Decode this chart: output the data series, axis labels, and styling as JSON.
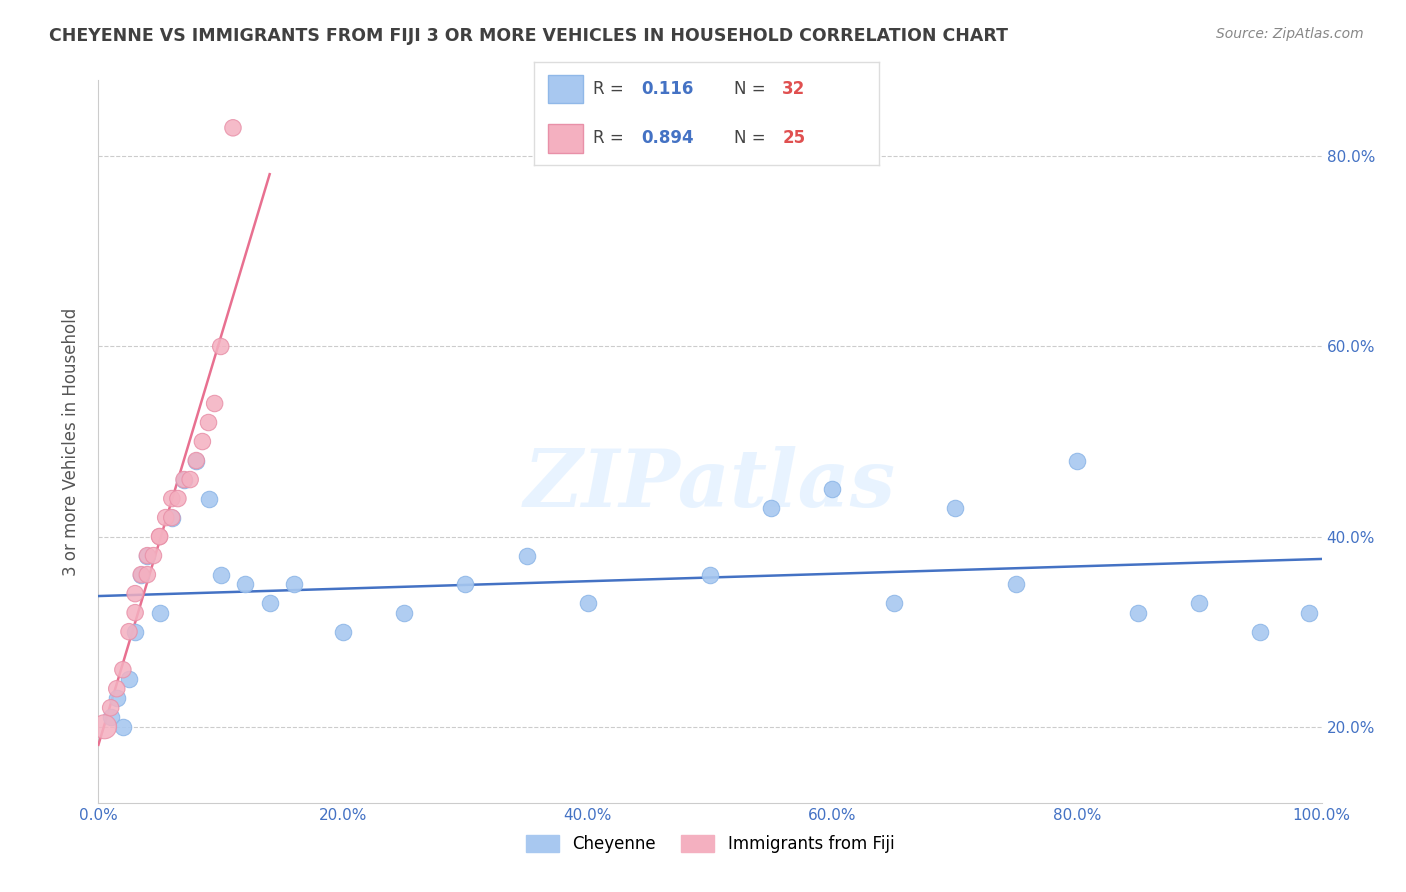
{
  "title": "CHEYENNE VS IMMIGRANTS FROM FIJI 3 OR MORE VEHICLES IN HOUSEHOLD CORRELATION CHART",
  "source": "Source: ZipAtlas.com",
  "ylabel": "3 or more Vehicles in Household",
  "watermark": "ZIPatlas",
  "legend_entry1": {
    "color": "#a8c8f0",
    "R": "0.116",
    "N": "32",
    "label": "Cheyenne"
  },
  "legend_entry2": {
    "color": "#f4b8c8",
    "R": "0.894",
    "N": "25",
    "label": "Immigrants from Fiji"
  },
  "cheyenne_x": [
    1.0,
    1.5,
    2.0,
    2.5,
    3.0,
    3.5,
    4.0,
    5.0,
    6.0,
    7.0,
    8.0,
    9.0,
    10.0,
    12.0,
    14.0,
    16.0,
    20.0,
    25.0,
    30.0,
    35.0,
    40.0,
    50.0,
    55.0,
    60.0,
    65.0,
    70.0,
    75.0,
    80.0,
    85.0,
    90.0,
    95.0,
    99.0
  ],
  "cheyenne_y": [
    21.0,
    23.0,
    20.0,
    25.0,
    30.0,
    36.0,
    38.0,
    32.0,
    42.0,
    46.0,
    48.0,
    44.0,
    36.0,
    35.0,
    33.0,
    35.0,
    30.0,
    32.0,
    35.0,
    38.0,
    33.0,
    36.0,
    43.0,
    45.0,
    33.0,
    43.0,
    35.0,
    48.0,
    32.0,
    33.0,
    30.0,
    32.0
  ],
  "fiji_x": [
    0.5,
    1.0,
    1.5,
    2.0,
    2.5,
    3.0,
    3.0,
    3.5,
    4.0,
    4.0,
    4.5,
    5.0,
    5.0,
    5.5,
    6.0,
    6.0,
    6.5,
    7.0,
    7.5,
    8.0,
    8.5,
    9.0,
    9.5,
    10.0,
    11.0
  ],
  "fiji_y": [
    20.0,
    22.0,
    24.0,
    26.0,
    30.0,
    32.0,
    34.0,
    36.0,
    36.0,
    38.0,
    38.0,
    40.0,
    40.0,
    42.0,
    42.0,
    44.0,
    44.0,
    46.0,
    46.0,
    48.0,
    50.0,
    52.0,
    54.0,
    60.0,
    83.0
  ],
  "xlim_pct": [
    0,
    100
  ],
  "ylim_pct": [
    12,
    88
  ],
  "ytick_vals": [
    20,
    40,
    60,
    80
  ],
  "ytick_labels_right": [
    "20.0%",
    "40.0%",
    "60.0%",
    "80.0%"
  ],
  "xtick_vals": [
    0,
    20,
    40,
    60,
    80,
    100
  ],
  "xtick_labels": [
    "0.0%",
    "20.0%",
    "40.0%",
    "60.0%",
    "80.0%",
    "100.0%"
  ],
  "blue_line_color": "#4472c4",
  "pink_line_color": "#e87090",
  "blue_scatter_color": "#a8c8f0",
  "pink_scatter_color": "#f4b0c0",
  "blue_scatter_edge": "#90b8e8",
  "pink_scatter_edge": "#e890a8",
  "background_color": "#ffffff",
  "grid_color": "#cccccc",
  "title_color": "#404040",
  "source_color": "#888888",
  "axis_color": "#cccccc",
  "tick_label_color": "#4472c4",
  "r_val_color": "#4472c4",
  "n_val_color": "#e05050"
}
